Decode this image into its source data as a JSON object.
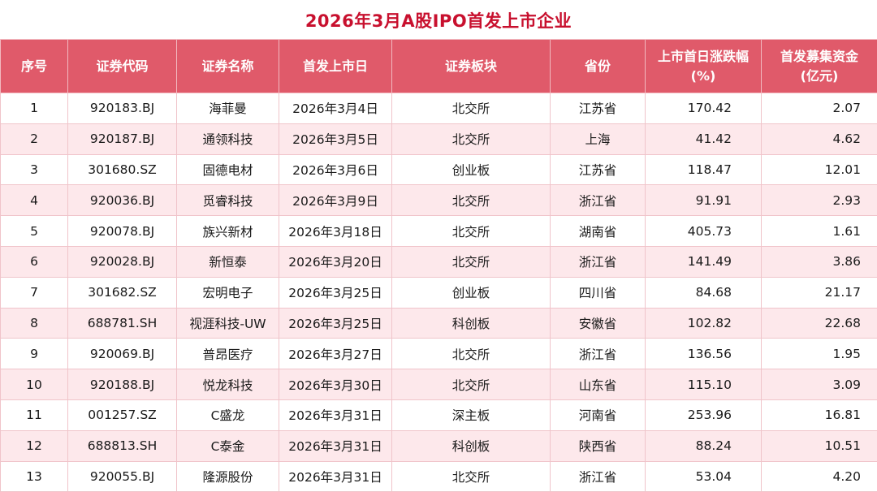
{
  "title": "2026年3月A股IPO首发上市企业",
  "headers": [
    "序号",
    "证券代码",
    "证券名称",
    "首发上市日",
    "证券板块",
    "省份",
    "上市首日涨跌幅\n(%)",
    "首发募集资金\n(亿元)"
  ],
  "rows": [
    [
      "1",
      "920183.BJ",
      "海菲曼",
      "2026年3月4日",
      "北交所",
      "江苏省",
      "170.42",
      "2.07"
    ],
    [
      "2",
      "920187.BJ",
      "通领科技",
      "2026年3月5日",
      "北交所",
      "上海",
      "41.42",
      "4.62"
    ],
    [
      "3",
      "301680.SZ",
      "固德电材",
      "2026年3月6日",
      "创业板",
      "江苏省",
      "118.47",
      "12.01"
    ],
    [
      "4",
      "920036.BJ",
      "觅睿科技",
      "2026年3月9日",
      "北交所",
      "浙江省",
      "91.91",
      "2.93"
    ],
    [
      "5",
      "920078.BJ",
      "族兴新材",
      "2026年3月18日",
      "北交所",
      "湖南省",
      "405.73",
      "1.61"
    ],
    [
      "6",
      "920028.BJ",
      "新恒泰",
      "2026年3月20日",
      "北交所",
      "浙江省",
      "141.49",
      "3.86"
    ],
    [
      "7",
      "301682.SZ",
      "宏明电子",
      "2026年3月25日",
      "创业板",
      "四川省",
      "84.68",
      "21.17"
    ],
    [
      "8",
      "688781.SH",
      "视涯科技-UW",
      "2026年3月25日",
      "科创板",
      "安徽省",
      "102.82",
      "22.68"
    ],
    [
      "9",
      "920069.BJ",
      "普昂医疗",
      "2026年3月27日",
      "北交所",
      "浙江省",
      "136.56",
      "1.95"
    ],
    [
      "10",
      "920188.BJ",
      "悦龙科技",
      "2026年3月30日",
      "北交所",
      "山东省",
      "115.10",
      "3.09"
    ],
    [
      "11",
      "001257.SZ",
      "C盛龙",
      "2026年3月31日",
      "深主板",
      "河南省",
      "253.96",
      "16.81"
    ],
    [
      "12",
      "688813.SH",
      "C泰金",
      "2026年3月31日",
      "科创板",
      "陕西省",
      "88.24",
      "10.51"
    ],
    [
      "13",
      "920055.BJ",
      "隆源股份",
      "2026年3月31日",
      "北交所",
      "浙江省",
      "53.04",
      "4.20"
    ]
  ],
  "colors": {
    "title": "#c8102e",
    "header_bg": "#e05a6a",
    "stripe": "#fde8eb"
  }
}
